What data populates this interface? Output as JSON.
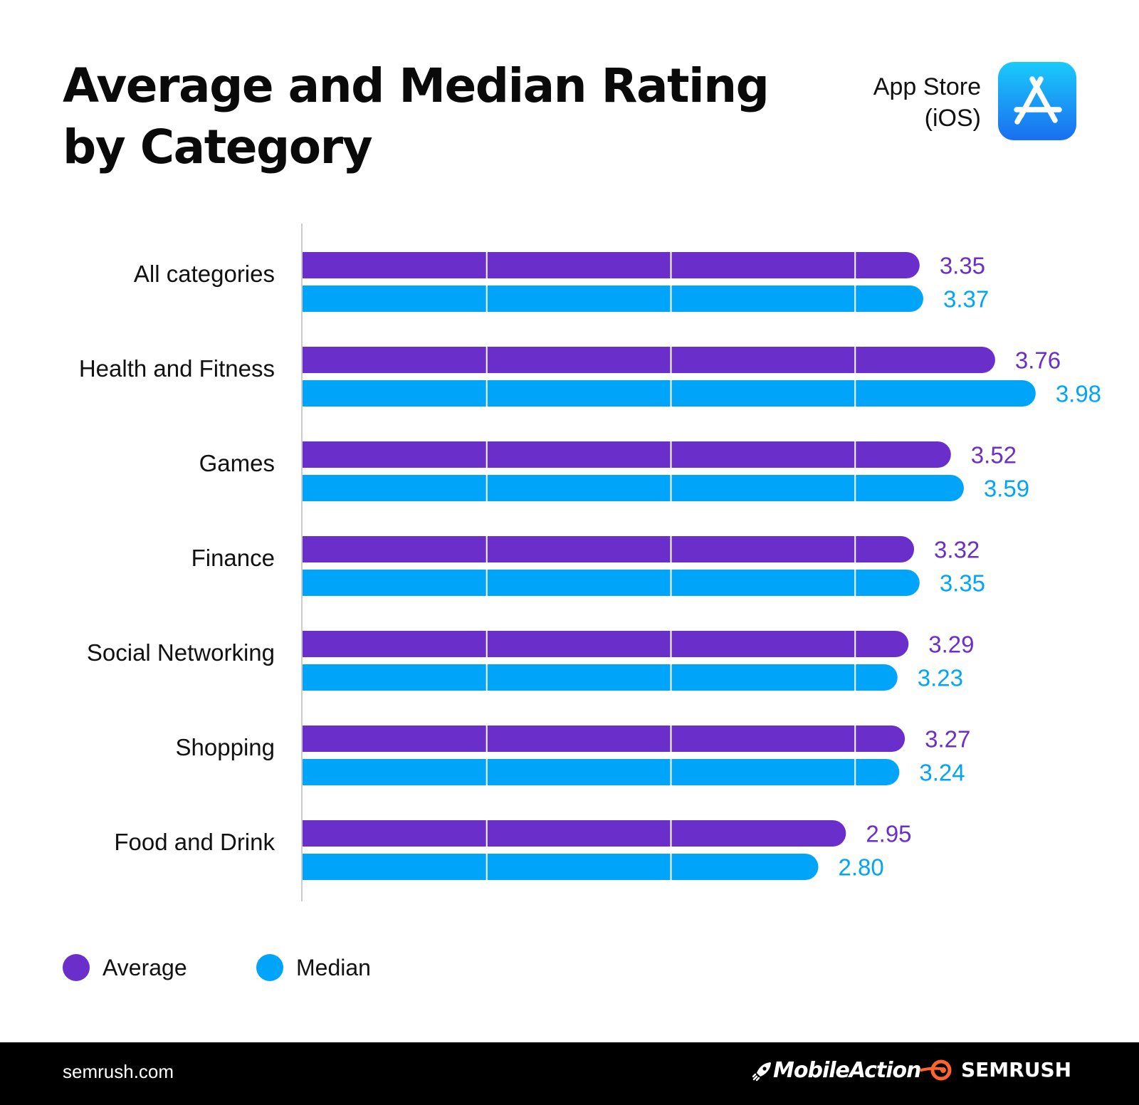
{
  "header": {
    "title_line1": "Average and Median Rating",
    "title_line2": "by Category",
    "store_line1": "App Store",
    "store_line2": "(iOS)",
    "store_icon": "app-store-icon"
  },
  "colors": {
    "average": "#6A2FCB",
    "median": "#00A5FA",
    "footer_bg": "#000000",
    "semrush_orange": "#FF642D"
  },
  "chart_data": {
    "type": "bar",
    "orientation": "horizontal",
    "title": "Average and Median Rating by Category",
    "categories": [
      "All categories",
      "Health and Fitness",
      "Games",
      "Finance",
      "Social Networking",
      "Shopping",
      "Food and Drink"
    ],
    "series": [
      {
        "name": "Average",
        "values": [
          3.35,
          3.76,
          3.52,
          3.32,
          3.29,
          3.27,
          2.95
        ],
        "labels": [
          "3.35",
          "3.76",
          "3.52",
          "3.32",
          "3.29",
          "3.27",
          "2.95"
        ]
      },
      {
        "name": "Median",
        "values": [
          3.37,
          3.98,
          3.59,
          3.35,
          3.23,
          3.24,
          2.8
        ],
        "labels": [
          "3.37",
          "3.98",
          "3.59",
          "3.35",
          "3.23",
          "3.24",
          "2.80"
        ]
      }
    ],
    "xlim": [
      0,
      4
    ],
    "gridlines": [
      1,
      2,
      3
    ],
    "xlabel": "",
    "ylabel": "",
    "legend_position": "bottom-left"
  },
  "legend": {
    "average_label": "Average",
    "median_label": "Median"
  },
  "footer": {
    "site": "semrush.com",
    "logo1_text": "MobileAction",
    "logo2_text": "SEMRUSH"
  }
}
